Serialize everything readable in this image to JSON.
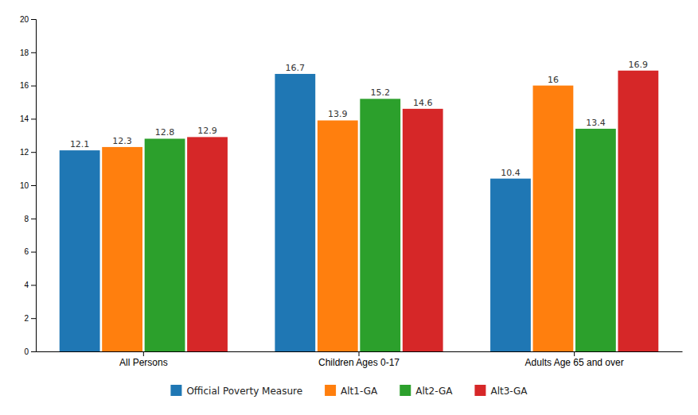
{
  "chart_data": {
    "type": "bar",
    "categories": [
      "All Persons",
      "Children Ages 0-17",
      "Adults Age 65 and over"
    ],
    "series": [
      {
        "name": "Official Poverty Measure",
        "values": [
          12.1,
          16.7,
          10.4
        ]
      },
      {
        "name": "Alt1-GA",
        "values": [
          12.3,
          13.9,
          16.0
        ]
      },
      {
        "name": "Alt2-GA",
        "values": [
          12.8,
          15.2,
          13.4
        ]
      },
      {
        "name": "Alt3-GA",
        "values": [
          12.9,
          14.6,
          16.9
        ]
      }
    ],
    "ylim": [
      0,
      20
    ],
    "yticks": [
      0,
      2,
      4,
      6,
      8,
      10,
      12,
      14,
      16,
      18,
      20
    ],
    "grid": false,
    "legend": "bottom",
    "data_labels": true
  }
}
